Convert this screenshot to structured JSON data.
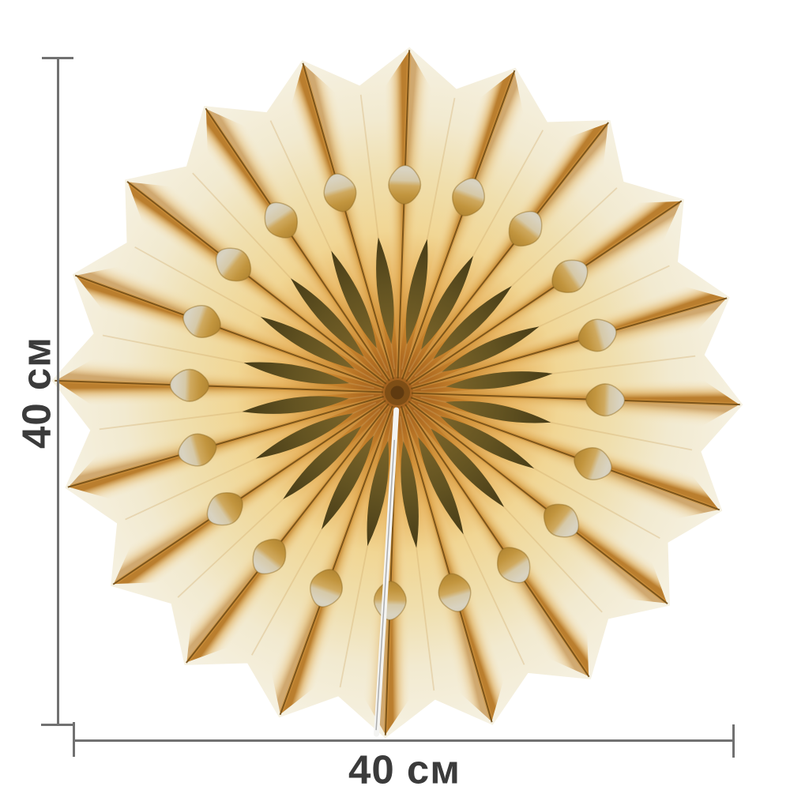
{
  "annotations": {
    "height_label": "40 см",
    "width_label": "40 см"
  },
  "style": {
    "background": "#ffffff",
    "dimension_line_color": "#717171",
    "dimension_text_color": "#3b3b3b"
  },
  "fan": {
    "name": "paper-fan-rosette",
    "pleat_count": 20,
    "gradients": {
      "base": [
        [
          0,
          "#9a5c1e"
        ],
        [
          0.1,
          "#b06c22"
        ],
        [
          0.21,
          "#cd8a30"
        ],
        [
          0.33,
          "#e9b763"
        ],
        [
          0.46,
          "#f1d694"
        ],
        [
          0.62,
          "#f0dfae"
        ],
        [
          0.78,
          "#f2ead0"
        ],
        [
          1,
          "#f6f2e4"
        ]
      ],
      "flame": [
        [
          0.12,
          "#7b662b"
        ],
        [
          0.3,
          "#5d4f1f"
        ],
        [
          0.45,
          "#3f3512"
        ]
      ],
      "band": [
        [
          0,
          "#b5741f",
          0.92
        ],
        [
          0.33,
          "#d89f45",
          0.5
        ],
        [
          0.7,
          "#ecc887",
          0.2
        ],
        [
          1,
          "#f0dcaa",
          0
        ]
      ],
      "hole": [
        [
          0,
          "#a87c2a"
        ],
        [
          0.3,
          "#c2953e"
        ],
        [
          0.48,
          "#cfa95e"
        ],
        [
          0.58,
          "#d6c9a8"
        ],
        [
          0.78,
          "#d9d3c1"
        ],
        [
          1,
          "#d2ccba"
        ]
      ]
    },
    "colors": {
      "crease": "#6f4a12",
      "crease_glow": "#d79a43",
      "valley": "#cfa96a",
      "hole_rim": "#8d6a24",
      "center_ring": "#7e4e16",
      "center_dot": "#5f3a10",
      "seam": "#f4f4f2",
      "seam_line": "#acacac"
    }
  }
}
